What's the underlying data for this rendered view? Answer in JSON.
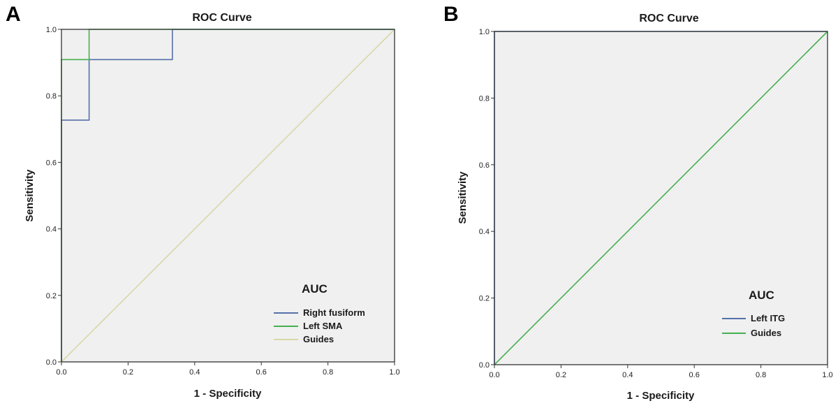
{
  "chart_data": [
    {
      "type": "line",
      "panel_label": "A",
      "title": "ROC Curve",
      "xlabel": "1 - Specificity",
      "ylabel": "Sensitivity",
      "xlim": [
        0,
        1
      ],
      "ylim": [
        0,
        1
      ],
      "x_ticks": [
        "0.0",
        "0.2",
        "0.4",
        "0.6",
        "0.8",
        "1.0"
      ],
      "y_ticks": [
        "0.0",
        "0.2",
        "0.4",
        "0.6",
        "0.8",
        "1.0"
      ],
      "grid": false,
      "legend_title": "AUC",
      "legend_position": "bottom-right",
      "plot_background": "#f0f0f0",
      "series": [
        {
          "name": "Right fusiform",
          "color": "#5470a8",
          "x": [
            0,
            0,
            0.083,
            0.083,
            0.333,
            0.333,
            1.0
          ],
          "y": [
            0,
            0.727,
            0.727,
            0.909,
            0.909,
            1.0,
            1.0
          ]
        },
        {
          "name": "Left SMA",
          "color": "#45b04e",
          "x": [
            0,
            0,
            0.083,
            0.083,
            1.0
          ],
          "y": [
            0,
            0.909,
            0.909,
            1.0,
            1.0
          ]
        },
        {
          "name": "Guides",
          "color": "#d8d8a8",
          "x": [
            0,
            1.0
          ],
          "y": [
            0,
            1.0
          ]
        }
      ]
    },
    {
      "type": "line",
      "panel_label": "B",
      "title": "ROC Curve",
      "xlabel": "1 - Specificity",
      "ylabel": "Sensitivity",
      "xlim": [
        0,
        1
      ],
      "ylim": [
        0,
        1
      ],
      "x_ticks": [
        "0.0",
        "0.2",
        "0.4",
        "0.6",
        "0.8",
        "1.0"
      ],
      "y_ticks": [
        "0.0",
        "0.2",
        "0.4",
        "0.6",
        "0.8",
        "1.0"
      ],
      "grid": false,
      "legend_title": "AUC",
      "legend_position": "bottom-right",
      "plot_background": "#f0f0f0",
      "series": [
        {
          "name": "Left ITG",
          "color": "#5470a8",
          "x": [
            0,
            0,
            1.0
          ],
          "y": [
            0,
            1.0,
            1.0
          ]
        },
        {
          "name": "Guides",
          "color": "#45b04e",
          "x": [
            0,
            1.0
          ],
          "y": [
            0,
            1.0
          ]
        }
      ]
    }
  ]
}
